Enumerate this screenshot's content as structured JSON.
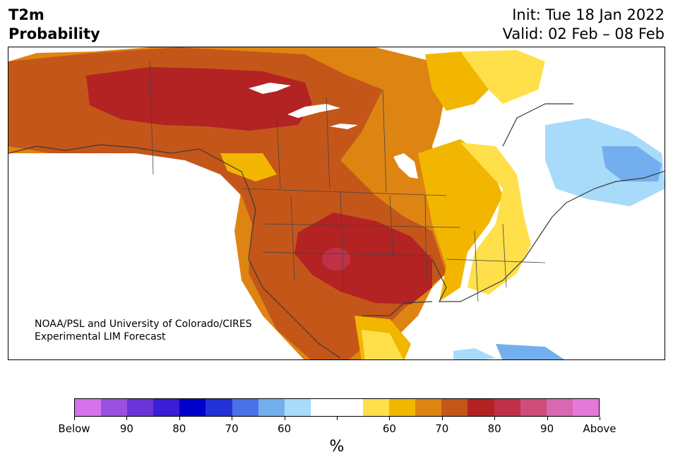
{
  "header": {
    "variable": "T2m",
    "product": "Probability",
    "init": "Init: Tue 18 Jan 2022",
    "valid": "Valid: 02 Feb – 08 Feb"
  },
  "credit": {
    "line1": "NOAA/PSL and University of Colorado/CIRES",
    "line2": "Experimental LIM Forecast"
  },
  "colorbar": {
    "units": "%",
    "colors": [
      "#d473ea",
      "#9b50e0",
      "#6a35d8",
      "#3a1dd6",
      "#0000cd",
      "#2332d9",
      "#4a72e6",
      "#73afee",
      "#a8dafa",
      "#ffffff",
      "#ffffff",
      "#ffe04a",
      "#f2b600",
      "#de8412",
      "#c4561a",
      "#b32323",
      "#c03148",
      "#cf4d7a",
      "#d968b3",
      "#e47ad8"
    ],
    "labels": [
      "Below",
      "90",
      "80",
      "70",
      "60",
      "",
      "60",
      "70",
      "80",
      "90",
      "Above"
    ]
  },
  "map": {
    "legend_colors": {
      "above_50": "#ffe04a",
      "above_60": "#f2b600",
      "above_70": "#de8412",
      "above_80": "#c4561a",
      "above_90": "#b32323",
      "above_95": "#c03148",
      "below_60": "#a8dafa",
      "below_70": "#73afee"
    }
  }
}
